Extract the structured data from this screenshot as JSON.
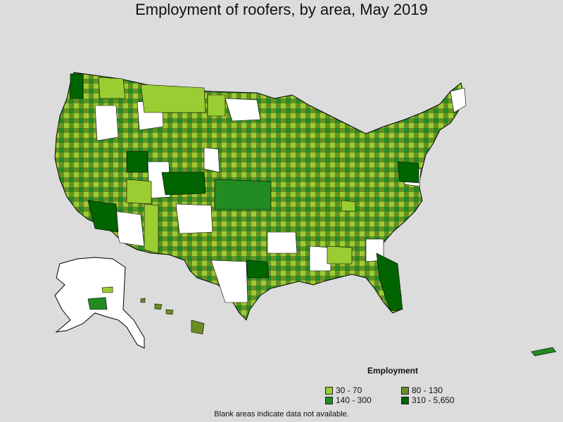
{
  "title": "Employment of roofers, by area, May 2019",
  "legend": {
    "title": "Employment",
    "items": [
      {
        "label": "30 - 70",
        "color": "#9acd32"
      },
      {
        "label": "80 - 130",
        "color": "#6b8e23"
      },
      {
        "label": "140 - 300",
        "color": "#228b22"
      },
      {
        "label": "310 - 5,650",
        "color": "#006400"
      }
    ]
  },
  "note": "Blank areas indicate data not available.",
  "colors": {
    "background": "#dcdcdc",
    "no_data": "#ffffff",
    "border": "#000000"
  }
}
